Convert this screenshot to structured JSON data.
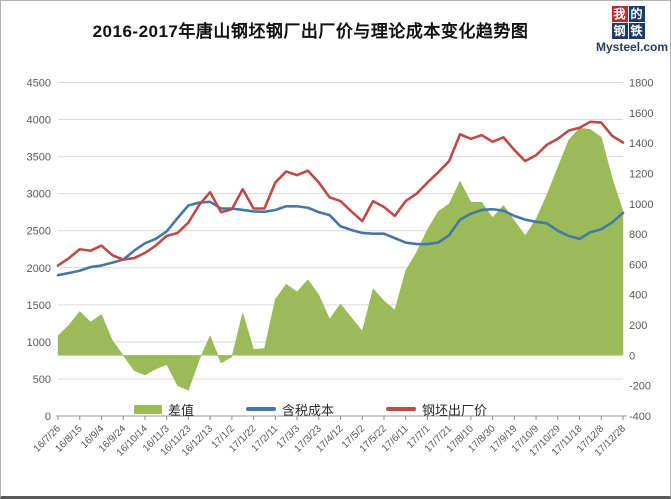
{
  "title": "2016-2017年唐山钢坯钢厂出厂价与理论成本变化趋势图",
  "logo": {
    "chars": [
      "我",
      "的",
      "钢",
      "铁"
    ],
    "brand": "Mysteel.com",
    "red_cell_color": "#c4282d",
    "blue_cell_color": "#1d3a70"
  },
  "legend": {
    "diff_label": "差值",
    "cost_label": "含税成本",
    "price_label": "钢坯出厂价"
  },
  "chart_data": {
    "type": "combo (area + line)",
    "title": "2016-2017年唐山钢坯钢厂出厂价与理论成本变化趋势图",
    "x": [
      "16/7/26",
      "16/8/5",
      "16/8/15",
      "16/8/25",
      "16/9/4",
      "16/9/14",
      "16/9/24",
      "16/10/4",
      "16/10/14",
      "16/10/24",
      "16/11/3",
      "16/11/13",
      "16/11/23",
      "16/12/3",
      "16/12/13",
      "16/12/23",
      "17/1/2",
      "17/1/12",
      "17/1/22",
      "17/2/1",
      "17/2/11",
      "17/2/21",
      "17/3/3",
      "17/3/13",
      "17/3/23",
      "17/4/2",
      "17/4/12",
      "17/4/22",
      "17/5/2",
      "17/5/12",
      "17/5/22",
      "17/6/1",
      "17/6/11",
      "17/6/21",
      "17/7/1",
      "17/7/11",
      "17/7/21",
      "17/7/31",
      "17/8/10",
      "17/8/20",
      "17/8/30",
      "17/9/9",
      "17/9/19",
      "17/9/29",
      "17/10/9",
      "17/10/19",
      "17/10/29",
      "17/11/8",
      "17/11/18",
      "17/11/28",
      "17/12/8",
      "17/12/18",
      "17/12/28"
    ],
    "x_labels": [
      "16/7/26",
      "16/8/15",
      "16/9/4",
      "16/9/24",
      "16/10/14",
      "16/11/3",
      "16/11/23",
      "16/12/13",
      "17/1/2",
      "17/1/22",
      "17/2/11",
      "17/3/3",
      "17/3/23",
      "17/4/12",
      "17/5/2",
      "17/5/22",
      "17/6/11",
      "17/7/1",
      "17/7/21",
      "17/8/10",
      "17/8/30",
      "17/9/19",
      "17/10/9",
      "17/10/29",
      "17/11/18",
      "17/12/8",
      "17/12/28"
    ],
    "series": [
      {
        "name": "差值",
        "type": "area",
        "axis": "right",
        "color": "#9bbb59",
        "values": [
          130,
          200,
          290,
          220,
          270,
          100,
          0,
          -100,
          -130,
          -90,
          -60,
          -200,
          -230,
          -30,
          130,
          -50,
          -10,
          280,
          40,
          45,
          370,
          470,
          420,
          500,
          400,
          240,
          340,
          250,
          160,
          440,
          360,
          300,
          560,
          680,
          830,
          950,
          1000,
          1150,
          1010,
          1010,
          910,
          990,
          890,
          790,
          900,
          1060,
          1240,
          1420,
          1500,
          1490,
          1440,
          1170,
          950
        ]
      },
      {
        "name": "含税成本",
        "type": "line",
        "axis": "left",
        "color": "#4677a9",
        "values": [
          1900,
          1930,
          1960,
          2010,
          2030,
          2070,
          2110,
          2230,
          2330,
          2390,
          2490,
          2670,
          2840,
          2880,
          2890,
          2800,
          2800,
          2780,
          2760,
          2755,
          2780,
          2830,
          2830,
          2810,
          2750,
          2710,
          2560,
          2510,
          2470,
          2460,
          2460,
          2400,
          2340,
          2320,
          2320,
          2340,
          2440,
          2650,
          2730,
          2780,
          2790,
          2770,
          2700,
          2650,
          2620,
          2600,
          2500,
          2430,
          2390,
          2480,
          2520,
          2610,
          2740
        ]
      },
      {
        "name": "钢坯出厂价",
        "type": "line",
        "axis": "left",
        "color": "#bf4a47",
        "values": [
          2030,
          2130,
          2250,
          2230,
          2300,
          2170,
          2110,
          2130,
          2200,
          2300,
          2430,
          2470,
          2610,
          2850,
          3020,
          2750,
          2790,
          3060,
          2800,
          2800,
          3150,
          3300,
          3250,
          3310,
          3150,
          2950,
          2900,
          2760,
          2630,
          2900,
          2820,
          2700,
          2900,
          3000,
          3150,
          3290,
          3440,
          3800,
          3740,
          3790,
          3700,
          3760,
          3590,
          3440,
          3520,
          3660,
          3740,
          3850,
          3890,
          3970,
          3960,
          3780,
          3690
        ]
      }
    ],
    "left_axis": {
      "min": 0,
      "max": 4500,
      "step": 500,
      "ticks": [
        "0",
        "500",
        "1000",
        "1500",
        "2000",
        "2500",
        "3000",
        "3500",
        "4000",
        "4500"
      ]
    },
    "right_axis": {
      "min": -400,
      "max": 1800,
      "step": 200,
      "ticks": [
        "-400",
        "-200",
        "0",
        "200",
        "400",
        "600",
        "800",
        "1000",
        "1200",
        "1400",
        "1600",
        "1800"
      ]
    },
    "grid": true,
    "legend_position": "bottom"
  }
}
